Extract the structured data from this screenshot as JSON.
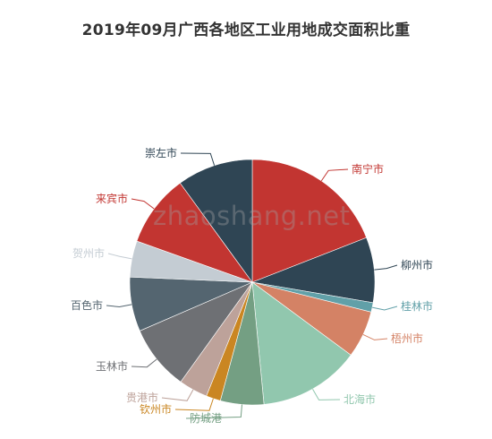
{
  "chart_data": {
    "type": "pie",
    "title": "2019年09月广西各地区工业用地成交面积比重",
    "slices": [
      {
        "label": "南宁市",
        "value": 20.0,
        "color": "#c23531"
      },
      {
        "label": "柳州市",
        "value": 9.0,
        "color": "#2f4554"
      },
      {
        "label": "桂林市",
        "value": 1.3,
        "color": "#61a0a8"
      },
      {
        "label": "梧州市",
        "value": 6.5,
        "color": "#d48265"
      },
      {
        "label": "北海市",
        "value": 14.0,
        "color": "#91c7ae"
      },
      {
        "label": "防城港",
        "value": 6.0,
        "color": "#749f83"
      },
      {
        "label": "钦州市",
        "value": 2.0,
        "color": "#ca8622"
      },
      {
        "label": "贵港市",
        "value": 4.0,
        "color": "#bda29a"
      },
      {
        "label": "玉林市",
        "value": 9.0,
        "color": "#6e7074"
      },
      {
        "label": "百色市",
        "value": 7.5,
        "color": "#546570"
      },
      {
        "label": "贺州市",
        "value": 5.0,
        "color": "#c4ccd3"
      },
      {
        "label": "来宾市",
        "value": 10.0,
        "color": "#c23531"
      },
      {
        "label": "崇左市",
        "value": 10.5,
        "color": "#2f4554"
      }
    ]
  },
  "watermark": "zhaoshang.net"
}
